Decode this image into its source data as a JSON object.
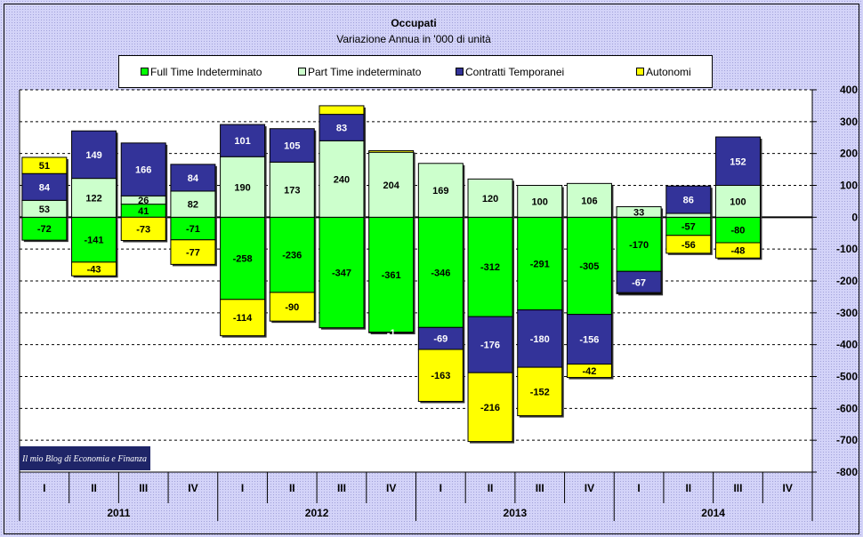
{
  "chart_data": {
    "type": "bar",
    "stacked": true,
    "title": "Occupati",
    "subtitle": "Variazione Annua in '000 di unità",
    "ylim": [
      -800,
      400
    ],
    "yticks": [
      400,
      300,
      200,
      100,
      0,
      -100,
      -200,
      -300,
      -400,
      -500,
      -600,
      -700,
      -800
    ],
    "y_axis_side": "right",
    "grid": true,
    "legend_position": "top",
    "x_groups": [
      {
        "label": "2011",
        "categories": [
          "I",
          "II",
          "III",
          "IV"
        ]
      },
      {
        "label": "2012",
        "categories": [
          "I",
          "II",
          "III",
          "IV"
        ]
      },
      {
        "label": "2013",
        "categories": [
          "I",
          "II",
          "III",
          "IV"
        ]
      },
      {
        "label": "2014",
        "categories": [
          "I",
          "II",
          "III",
          "IV"
        ]
      }
    ],
    "series": [
      {
        "name": "Full Time Indeterminato",
        "color": "#00FF00",
        "label_color": "#000000",
        "values": [
          -72,
          -141,
          41,
          -71,
          -258,
          -236,
          -347,
          -361,
          -346,
          -312,
          -291,
          -305,
          -170,
          -57,
          -80,
          null
        ],
        "labels": [
          "-72",
          "-141",
          "41",
          "-71",
          "-258",
          "-236",
          "-347",
          "-361",
          "-346",
          "-312",
          "-291",
          "-305",
          "-170",
          "-57",
          "-80",
          ""
        ]
      },
      {
        "name": "Part Time indeterminato",
        "color": "#CCFFCC",
        "label_color": "#000000",
        "values": [
          53,
          122,
          26,
          82,
          190,
          173,
          240,
          204,
          169,
          120,
          100,
          106,
          33,
          12,
          100,
          null
        ],
        "labels": [
          "53",
          "122",
          "26",
          "82",
          "190",
          "173",
          "240",
          "204",
          "169",
          "120",
          "100",
          "106",
          "33",
          "",
          "100",
          ""
        ]
      },
      {
        "name": "Contratti Temporanei",
        "color": "#333399",
        "label_color": "#FFFFFF",
        "values": [
          84,
          149,
          166,
          84,
          101,
          105,
          83,
          -1,
          -69,
          -176,
          -180,
          -156,
          -67,
          86,
          152,
          null
        ],
        "labels": [
          "84",
          "149",
          "166",
          "84",
          "101",
          "105",
          "83",
          "-1",
          "-69",
          "-176",
          "-180",
          "-156",
          "-67",
          "86",
          "152",
          ""
        ]
      },
      {
        "name": "Autonomi",
        "color": "#FFFF00",
        "label_color": "#000000",
        "values": [
          51,
          -43,
          -73,
          -77,
          -114,
          -90,
          27,
          5,
          -163,
          -216,
          -152,
          -42,
          -3,
          -56,
          -48,
          null
        ],
        "labels": [
          "51",
          "-43",
          "-73",
          "-77",
          "-114",
          "-90",
          "",
          "",
          "-163",
          "-216",
          "-152",
          "-42",
          "",
          "-56",
          "-48",
          ""
        ]
      }
    ]
  },
  "watermark": {
    "text": "Il mio Blog di Economia e Finanza"
  }
}
